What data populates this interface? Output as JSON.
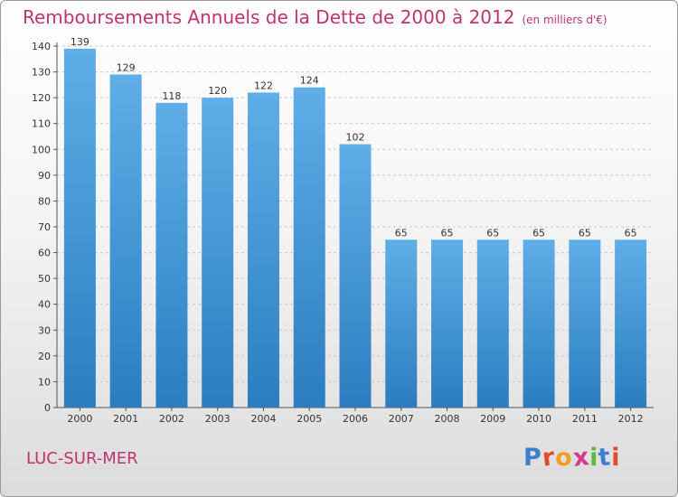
{
  "title": "Remboursements Annuels de la Dette de 2000 à 2012",
  "unit": "(en milliers d'€)",
  "city": "LUC-SUR-MER",
  "brand": {
    "name": "Proxiti",
    "letter_colors": [
      "#3f7fd0",
      "#e24b2a",
      "#f0a020",
      "#d63a8e",
      "#5fb83b",
      "#3f7fd0",
      "#e24b2a"
    ]
  },
  "colors": {
    "bar_top": "#5faee8",
    "bar_bottom": "#2b7dbf",
    "accent": "#c0336e"
  },
  "chart_data": {
    "type": "bar",
    "categories": [
      "2000",
      "2001",
      "2002",
      "2003",
      "2004",
      "2005",
      "2006",
      "2007",
      "2008",
      "2009",
      "2010",
      "2011",
      "2012"
    ],
    "values": [
      139,
      129,
      118,
      120,
      122,
      124,
      102,
      65,
      65,
      65,
      65,
      65,
      65
    ],
    "title": "Remboursements Annuels de la Dette de 2000 à 2012",
    "ylim": [
      0,
      140
    ],
    "yticks": [
      0,
      10,
      20,
      30,
      40,
      50,
      60,
      70,
      80,
      90,
      100,
      110,
      120,
      130,
      140
    ],
    "grid": true,
    "legend": "none"
  }
}
